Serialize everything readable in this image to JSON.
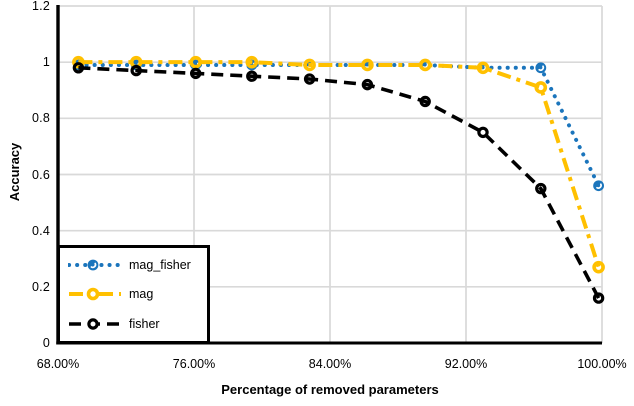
{
  "chart_data": {
    "type": "line",
    "title": "",
    "xlabel": "Percentage of removed parameters",
    "ylabel": "Accuracy",
    "xlim": [
      68,
      100
    ],
    "ylim": [
      0,
      1.2
    ],
    "grid": true,
    "legend_position": "inside-bottom-left",
    "xticks": {
      "values": [
        68,
        76,
        84,
        92,
        100
      ],
      "labels": [
        "68.00%",
        "76.00%",
        "84.00%",
        "92.00%",
        "100.00%"
      ]
    },
    "yticks": {
      "values": [
        0,
        0.2,
        0.4,
        0.6,
        0.8,
        1,
        1.2
      ],
      "labels": [
        "0",
        "0.2",
        "0.4",
        "0.6",
        "0.8",
        "1",
        "1.2"
      ]
    },
    "x": [
      69.2,
      72.6,
      76.1,
      79.4,
      82.8,
      86.2,
      89.6,
      93.0,
      96.4,
      99.8
    ],
    "series": [
      {
        "name": "mag_fisher",
        "color": "#1b75bc",
        "line_style": "dotted",
        "marker": "filled-circle",
        "values": [
          0.99,
          0.99,
          0.99,
          0.99,
          0.99,
          0.99,
          0.99,
          0.98,
          0.98,
          0.56
        ]
      },
      {
        "name": "mag",
        "color": "#ffc000",
        "line_style": "dash-dot",
        "marker": "open-circle",
        "values": [
          1.0,
          1.0,
          1.0,
          1.0,
          0.99,
          0.99,
          0.99,
          0.98,
          0.91,
          0.27
        ]
      },
      {
        "name": "fisher",
        "color": "#000000",
        "line_style": "dashed",
        "marker": "open-circle",
        "values": [
          0.98,
          0.97,
          0.96,
          0.95,
          0.94,
          0.92,
          0.86,
          0.75,
          0.55,
          0.16
        ]
      }
    ]
  },
  "colors": {
    "grid": "#d9d9d9",
    "axis": "#000000",
    "background": "#ffffff"
  }
}
